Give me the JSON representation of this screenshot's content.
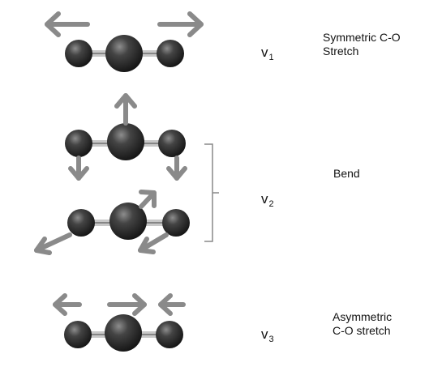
{
  "colors": {
    "arrow": "#8a8a8a",
    "bond": "#c8c8c8",
    "atom_dark": "#1a1a1a",
    "atom_light": "#8d8d8d"
  },
  "modes": [
    {
      "symbol": "v",
      "subscript": "1",
      "label_line1": "Symmetric C-O",
      "label_line2": "Stretch"
    },
    {
      "symbol": "v",
      "subscript": "2",
      "label_line1": "Bend",
      "label_line2": ""
    },
    {
      "symbol": "v",
      "subscript": "3",
      "label_line1": "Asymmetric",
      "label_line2": "C-O stretch"
    }
  ]
}
